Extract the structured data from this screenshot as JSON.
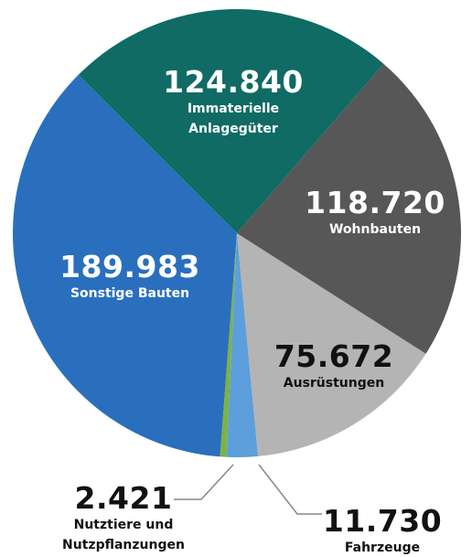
{
  "chart_data": {
    "type": "pie",
    "categories": [
      "Immaterielle Anlagegüter",
      "Wohnbauten",
      "Ausrüstungen",
      "Fahrzeuge",
      "Nutztiere und Nutzpflanzungen",
      "Sonstige Bauten"
    ],
    "values": [
      124840,
      118720,
      75672,
      11730,
      2421,
      189983
    ],
    "value_labels": [
      "124.840",
      "118.720",
      "75.672",
      "11.730",
      "2.421",
      "189.983"
    ],
    "colors": [
      "#0f6b64",
      "#575757",
      "#b4b4b4",
      "#5c9fdc",
      "#7cb342",
      "#2a6fbd"
    ]
  }
}
